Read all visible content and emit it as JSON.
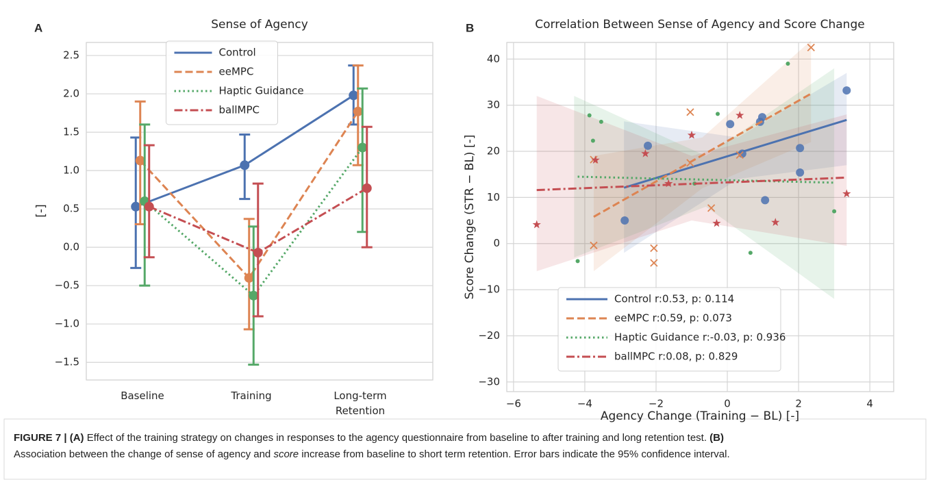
{
  "chart_data": [
    {
      "type": "line",
      "panel": "A",
      "title": "Sense of Agency",
      "ylabel": "[-]",
      "categories": [
        "Baseline",
        "Training",
        "Long-term Retention"
      ],
      "ylim": [
        -1.73,
        2.67
      ],
      "yticks": [
        {
          "value": -1.5,
          "label": "−1.5"
        },
        {
          "value": -1,
          "label": "−1.0"
        },
        {
          "value": -0.5,
          "label": "−0.5"
        },
        {
          "value": 0,
          "label": "0.0"
        },
        {
          "value": 0.5,
          "label": "0.5"
        },
        {
          "value": 1,
          "label": "1.0"
        },
        {
          "value": 1.5,
          "label": "1.5"
        },
        {
          "value": 2,
          "label": "2.0"
        },
        {
          "value": 2.5,
          "label": "2.5"
        }
      ],
      "grid": true,
      "legend": "upper center",
      "series": [
        {
          "name": "Control",
          "color": "#4c72b0",
          "dash": "solid",
          "values": [
            0.53,
            1.07,
            1.98
          ],
          "ci": [
            [
              -0.27,
              1.43
            ],
            [
              0.63,
              1.47
            ],
            [
              1.6,
              2.37
            ]
          ]
        },
        {
          "name": "eeMPC",
          "color": "#dd8452",
          "dash": "dashed",
          "values": [
            1.13,
            -0.4,
            1.77
          ],
          "ci": [
            [
              0.3,
              1.9
            ],
            [
              -1.07,
              0.37
            ],
            [
              1.07,
              2.37
            ]
          ]
        },
        {
          "name": "Haptic Guidance",
          "color": "#55a868",
          "dash": "dotted",
          "values": [
            0.6,
            -0.63,
            1.3
          ],
          "ci": [
            [
              -0.5,
              1.6
            ],
            [
              -1.53,
              0.27
            ],
            [
              0.2,
              2.07
            ]
          ]
        },
        {
          "name": "ballMPC",
          "color": "#c44e52",
          "dash": "dashdot",
          "values": [
            0.53,
            -0.07,
            0.77
          ],
          "ci": [
            [
              -0.13,
              1.33
            ],
            [
              -0.9,
              0.83
            ],
            [
              0.0,
              1.57
            ]
          ]
        }
      ]
    },
    {
      "type": "scatter",
      "panel": "B",
      "title": "Correlation Between Sense of Agency and Score Change",
      "xlabel": "Agency Change (Training − BL) [-]",
      "ylabel": "Score Change (STR − BL) [-]",
      "xlim": [
        -6.19,
        4.67
      ],
      "ylim": [
        -32.1,
        43.6
      ],
      "xticks": [
        {
          "value": -6,
          "label": "−6"
        },
        {
          "value": -4,
          "label": "−4"
        },
        {
          "value": -2,
          "label": "−2"
        },
        0,
        2,
        4
      ],
      "yticks": [
        {
          "value": -30,
          "label": "−30"
        },
        {
          "value": -20,
          "label": "−20"
        },
        {
          "value": -10,
          "label": "−10"
        },
        0,
        10,
        20,
        30,
        40
      ],
      "grid": true,
      "legend": "lower center",
      "series": [
        {
          "name": "Control r:0.53, p: 0.114",
          "color": "#4c72b0",
          "dash": "solid",
          "marker": "o",
          "x": [
            -2.88,
            -2.23,
            0.08,
            0.42,
            0.98,
            0.92,
            1.06,
            2.04,
            2.04,
            3.35
          ],
          "y": [
            5.0,
            21.2,
            25.9,
            19.5,
            27.4,
            26.4,
            9.4,
            20.7,
            15.4,
            33.2
          ],
          "fit": {
            "x": [
              -2.9,
              3.35
            ],
            "y": [
              12.1,
              26.8
            ]
          },
          "band": {
            "x": [
              -2.9,
              0.3,
              3.35
            ],
            "lower": [
              -2,
              14,
              17
            ],
            "upper": [
              26.5,
              23,
              37
            ]
          }
        },
        {
          "name": "eeMPC r:0.59, p: 0.073",
          "color": "#dd8452",
          "dash": "dashed",
          "marker": "x",
          "x": [
            -3.75,
            -3.75,
            -2.06,
            -2.06,
            -1.04,
            -1.04,
            -0.45,
            0.35,
            2.35
          ],
          "y": [
            18.2,
            -0.4,
            -1.0,
            -4.2,
            28.5,
            17.5,
            7.7,
            19.2,
            42.5
          ],
          "fit": {
            "x": [
              -3.75,
              2.35
            ],
            "y": [
              5.8,
              32.5
            ]
          },
          "band": {
            "x": [
              -3.75,
              -0.7,
              2.35
            ],
            "lower": [
              -6,
              12,
              22
            ],
            "upper": [
              19,
              23,
              44
            ]
          }
        },
        {
          "name": "Haptic Guidance r:-0.03, p: 0.936",
          "color": "#55a868",
          "dash": "dotted",
          "marker": ".",
          "x": [
            -4.2,
            -3.87,
            -3.54,
            -3.77,
            -0.27,
            -0.92,
            0.65,
            1.7,
            3.0
          ],
          "y": [
            -3.8,
            27.8,
            26.4,
            22.3,
            28.1,
            13.0,
            -2.0,
            39.0,
            7.0
          ],
          "fit": {
            "x": [
              -4.2,
              3.0
            ],
            "y": [
              14.5,
              13.2
            ]
          },
          "band": {
            "x": [
              -4.3,
              -0.6,
              3.0
            ],
            "lower": [
              -3,
              8,
              -12
            ],
            "upper": [
              32,
              19,
              38
            ]
          }
        },
        {
          "name": "ballMPC r:0.08, p: 0.829",
          "color": "#c44e52",
          "dash": "dashdot",
          "marker": "*",
          "x": [
            -5.35,
            -3.7,
            -2.3,
            -1.65,
            -1.0,
            -0.3,
            0.35,
            1.35,
            3.35
          ],
          "y": [
            4.1,
            18.1,
            19.5,
            13.0,
            23.5,
            4.4,
            27.8,
            4.6,
            10.8
          ],
          "fit": {
            "x": [
              -5.35,
              3.35
            ],
            "y": [
              11.6,
              14.3
            ]
          },
          "band": {
            "x": [
              -5.35,
              -1.0,
              3.35
            ],
            "lower": [
              -6,
              5,
              -0.5
            ],
            "upper": [
              32,
              19,
              28
            ]
          }
        }
      ]
    }
  ],
  "caption": [
    "FIGURE 7 | (A)",
    " Effect of the training strategy on changes in responses to the agency questionnaire from baseline to after training and long retention test. ",
    "(B)",
    "Association between the change of sense of agency and ",
    "score",
    " increase from baseline to short term retention. Error bars indicate the 95% confidence interval."
  ]
}
